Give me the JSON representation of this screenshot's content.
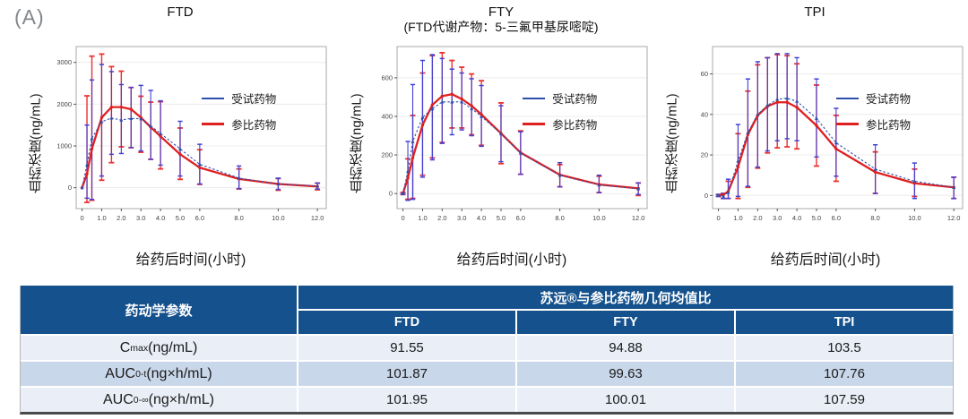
{
  "panel_label": "(A)",
  "colors": {
    "test_line": "#2e4fae",
    "test_err": "#4141d6",
    "ref_line": "#e02020",
    "ref_err": "#ee3030",
    "header_bg": "#15518c",
    "row_light": "#e9eef7",
    "row_mid": "#c9d7ea"
  },
  "chart_data": [
    {
      "type": "line",
      "title": "FTD",
      "subtitle": "",
      "ylabel": "血药浓度(ng/mL)",
      "xlabel": "给药后时间(小时)",
      "x": [
        0,
        0.25,
        0.5,
        1,
        1.5,
        2,
        2.5,
        3,
        3.5,
        4,
        5,
        6,
        8,
        10,
        12
      ],
      "xticks": [
        0,
        1,
        2,
        3,
        4,
        5,
        6,
        8,
        10,
        12
      ],
      "xtick_labels": [
        "0",
        "1.0",
        "2.0",
        "3.0",
        "4.0",
        "5.0",
        "6.0",
        "8.0",
        "10.0",
        "12.0"
      ],
      "yticks": [
        0,
        1000,
        2000,
        3000
      ],
      "ylim": [
        -500,
        3380
      ],
      "xlim": [
        -0.3,
        12.45
      ],
      "grid": true,
      "legend_position": "upper-right-inside",
      "series": [
        {
          "name": "受试药物",
          "color_key": "test",
          "values": [
            0,
            550,
            1180,
            1580,
            1670,
            1620,
            1660,
            1650,
            1480,
            1300,
            930,
            560,
            230,
            90,
            40
          ],
          "err_hi": [
            10,
            1500,
            2580,
            2950,
            2780,
            2470,
            2400,
            2450,
            2330,
            2080,
            1590,
            1040,
            520,
            230,
            110
          ],
          "err_lo": [
            -10,
            -250,
            -280,
            280,
            800,
            820,
            960,
            880,
            680,
            540,
            280,
            90,
            -20,
            -40,
            -30
          ]
        },
        {
          "name": "参比药物",
          "color_key": "ref",
          "values": [
            0,
            330,
            930,
            1680,
            1930,
            1930,
            1880,
            1680,
            1450,
            1230,
            800,
            480,
            210,
            90,
            30
          ],
          "err_hi": [
            10,
            2200,
            3150,
            3200,
            2900,
            2790,
            2400,
            2190,
            2050,
            2060,
            1430,
            910,
            450,
            220,
            110
          ],
          "err_lo": [
            -10,
            -350,
            -300,
            180,
            600,
            980,
            960,
            850,
            680,
            450,
            200,
            80,
            -30,
            -60,
            -50
          ]
        }
      ]
    },
    {
      "type": "line",
      "title": "FTY",
      "subtitle": "(FTD代谢产物：5-三氟甲基尿嘧啶)",
      "ylabel": "血药浓度(ng/mL)",
      "xlabel": "给药后时间(小时)",
      "x": [
        0,
        0.25,
        0.5,
        1,
        1.5,
        2,
        2.5,
        3,
        3.5,
        4,
        5,
        6,
        8,
        10,
        12
      ],
      "xticks": [
        0,
        1,
        2,
        3,
        4,
        5,
        6,
        8,
        10,
        12
      ],
      "xtick_labels": [
        "0",
        "1.0",
        "2.0",
        "3.0",
        "4.0",
        "5.0",
        "6.0",
        "8.0",
        "10.0",
        "12.0"
      ],
      "yticks": [
        0,
        200,
        400,
        600
      ],
      "ylim": [
        -78,
        762
      ],
      "xlim": [
        -0.3,
        12.45
      ],
      "grid": true,
      "legend_position": "upper-right-inside",
      "series": [
        {
          "name": "受试药物",
          "color_key": "test",
          "values": [
            0,
            115,
            270,
            395,
            440,
            475,
            475,
            475,
            440,
            400,
            310,
            210,
            95,
            45,
            25
          ],
          "err_hi": [
            5,
            270,
            565,
            690,
            720,
            700,
            645,
            625,
            595,
            560,
            455,
            320,
            160,
            95,
            55
          ],
          "err_lo": [
            -5,
            -35,
            -30,
            85,
            175,
            260,
            305,
            330,
            300,
            245,
            165,
            100,
            35,
            5,
            -5
          ]
        },
        {
          "name": "参比药物",
          "color_key": "ref",
          "values": [
            0,
            80,
            185,
            355,
            460,
            505,
            515,
            490,
            455,
            410,
            312,
            212,
            97,
            47,
            27
          ],
          "err_hi": [
            5,
            180,
            405,
            625,
            715,
            730,
            690,
            655,
            620,
            585,
            470,
            325,
            150,
            90,
            55
          ],
          "err_lo": [
            -5,
            -30,
            -25,
            95,
            185,
            265,
            340,
            340,
            305,
            250,
            155,
            100,
            35,
            5,
            -10
          ]
        }
      ]
    },
    {
      "type": "line",
      "title": "TPI",
      "subtitle": "",
      "ylabel": "血药浓度(ng/mL)",
      "xlabel": "给药后时间(小时)",
      "x": [
        0,
        0.25,
        0.5,
        1,
        1.5,
        2,
        2.5,
        3,
        3.5,
        4,
        5,
        6,
        8,
        10,
        12
      ],
      "xticks": [
        0,
        1,
        2,
        3,
        4,
        5,
        6,
        8,
        10,
        12
      ],
      "xtick_labels": [
        "0",
        "1.0",
        "2.0",
        "3.0",
        "4.0",
        "5.0",
        "6.0",
        "8.0",
        "10.0",
        "12.0"
      ],
      "yticks": [
        0,
        20,
        40,
        60
      ],
      "ylim": [
        -6.5,
        73.5
      ],
      "xlim": [
        -0.3,
        12.45
      ],
      "grid": true,
      "legend_position": "upper-right-inside",
      "series": [
        {
          "name": "受试药物",
          "color_key": "test",
          "values": [
            0,
            -0.3,
            1.5,
            17,
            31,
            40,
            44.5,
            47.5,
            48,
            46.5,
            38,
            26,
            13,
            7,
            4
          ],
          "err_hi": [
            0.5,
            1,
            8,
            35,
            57.5,
            66,
            68,
            70,
            70,
            68,
            57.5,
            43,
            25,
            16,
            9
          ],
          "err_lo": [
            -0.5,
            -1.5,
            -1.5,
            -0.5,
            4.5,
            14,
            22,
            27,
            28,
            27,
            19,
            9.5,
            1,
            -1.5,
            -1.5
          ]
        },
        {
          "name": "参比药物",
          "color_key": "ref",
          "values": [
            0,
            0.3,
            2,
            14,
            30,
            39.5,
            44,
            46,
            46,
            43.5,
            34.5,
            23,
            11.5,
            6,
            4
          ],
          "err_hi": [
            0.5,
            1,
            7,
            30.5,
            51.5,
            64.5,
            68,
            69.5,
            69,
            65,
            54.5,
            39.5,
            21.5,
            13,
            9
          ],
          "err_lo": [
            -0.5,
            -1.5,
            -1.5,
            -1.5,
            4,
            13.5,
            21,
            23.5,
            24,
            23,
            14.5,
            7,
            1,
            -0.5,
            -1.5
          ]
        }
      ]
    }
  ],
  "table": {
    "param_header": "药动学参数",
    "group_header": "苏远®与参比药物几何均值比",
    "columns": [
      "FTD",
      "FTY",
      "TPI"
    ],
    "rows": [
      {
        "param_base": "C",
        "param_sub": "max",
        "param_rest": "(ng/mL)",
        "values": [
          "91.55",
          "94.88",
          "103.5"
        ]
      },
      {
        "param_base": "AUC",
        "param_sub": "0-t",
        "param_rest": "(ng×h/mL)",
        "values": [
          "101.87",
          "99.63",
          "107.76"
        ]
      },
      {
        "param_base": "AUC",
        "param_sub": "0-∞",
        "param_rest": "(ng×h/mL)",
        "values": [
          "101.95",
          "100.01",
          "107.59"
        ]
      }
    ]
  }
}
